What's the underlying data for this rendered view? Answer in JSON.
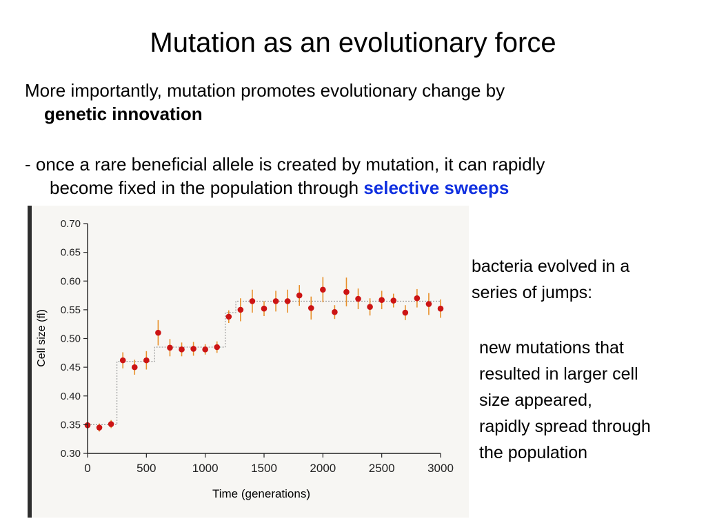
{
  "slide": {
    "title": "Mutation as an evolutionary force",
    "para1_text": "More importantly, mutation promotes evolutionary change by",
    "para1_bold": "genetic innovation",
    "para2_text": "- once a rare beneficial allele is created by mutation, it can rapidly",
    "para2_text2": "become fixed in the population through",
    "para2_highlight": "selective sweeps",
    "side_note1": [
      "bacteria evolved in a",
      "series of jumps:"
    ],
    "side_note2": [
      "new mutations that",
      "resulted in larger cell",
      "size appeared,",
      "rapidly spread through",
      "the population"
    ]
  },
  "colors": {
    "highlight": "#1030e0",
    "points": "#cc1414",
    "error_bars": "#e8902a",
    "step_line": "#8a8a8a"
  },
  "chart_data": {
    "type": "scatter",
    "xlabel": "Time (generations)",
    "ylabel": "Cell size (fl)",
    "xlim": [
      0,
      3000
    ],
    "ylim": [
      0.3,
      0.7
    ],
    "x_ticks": [
      0,
      500,
      1000,
      1500,
      2000,
      2500,
      3000
    ],
    "y_ticks": [
      0.3,
      0.35,
      0.4,
      0.45,
      0.5,
      0.55,
      0.6,
      0.65,
      0.7
    ],
    "y_tick_labels": [
      "0.30",
      "0.35",
      "0.40",
      "0.45",
      "0.50",
      "0.55",
      "0.60",
      "0.65",
      "0.70"
    ],
    "points": [
      {
        "x": 0,
        "y": 0.349,
        "err": 0.006
      },
      {
        "x": 100,
        "y": 0.345,
        "err": 0.007
      },
      {
        "x": 200,
        "y": 0.351,
        "err": 0.007
      },
      {
        "x": 300,
        "y": 0.462,
        "err": 0.014
      },
      {
        "x": 400,
        "y": 0.45,
        "err": 0.013
      },
      {
        "x": 500,
        "y": 0.462,
        "err": 0.016
      },
      {
        "x": 600,
        "y": 0.51,
        "err": 0.022
      },
      {
        "x": 700,
        "y": 0.484,
        "err": 0.015
      },
      {
        "x": 800,
        "y": 0.481,
        "err": 0.012
      },
      {
        "x": 900,
        "y": 0.482,
        "err": 0.012
      },
      {
        "x": 1000,
        "y": 0.481,
        "err": 0.009
      },
      {
        "x": 1100,
        "y": 0.485,
        "err": 0.01
      },
      {
        "x": 1200,
        "y": 0.538,
        "err": 0.011
      },
      {
        "x": 1300,
        "y": 0.55,
        "err": 0.02
      },
      {
        "x": 1400,
        "y": 0.565,
        "err": 0.02
      },
      {
        "x": 1500,
        "y": 0.552,
        "err": 0.013
      },
      {
        "x": 1600,
        "y": 0.565,
        "err": 0.018
      },
      {
        "x": 1700,
        "y": 0.565,
        "err": 0.02
      },
      {
        "x": 1800,
        "y": 0.575,
        "err": 0.018
      },
      {
        "x": 1900,
        "y": 0.553,
        "err": 0.02
      },
      {
        "x": 2000,
        "y": 0.585,
        "err": 0.022
      },
      {
        "x": 2100,
        "y": 0.546,
        "err": 0.012
      },
      {
        "x": 2200,
        "y": 0.581,
        "err": 0.025
      },
      {
        "x": 2300,
        "y": 0.569,
        "err": 0.018
      },
      {
        "x": 2400,
        "y": 0.555,
        "err": 0.015
      },
      {
        "x": 2500,
        "y": 0.567,
        "err": 0.016
      },
      {
        "x": 2600,
        "y": 0.566,
        "err": 0.012
      },
      {
        "x": 2700,
        "y": 0.545,
        "err": 0.013
      },
      {
        "x": 2800,
        "y": 0.57,
        "err": 0.016
      },
      {
        "x": 2900,
        "y": 0.56,
        "err": 0.019
      },
      {
        "x": 3000,
        "y": 0.552,
        "err": 0.016
      }
    ],
    "step_fit": [
      {
        "x0": 0,
        "x1": 250,
        "y": 0.35
      },
      {
        "x0": 250,
        "x1": 570,
        "y": 0.46
      },
      {
        "x0": 570,
        "x1": 1170,
        "y": 0.485
      },
      {
        "x0": 1170,
        "x1": 1260,
        "y": 0.545
      },
      {
        "x0": 1260,
        "x1": 3000,
        "y": 0.565
      }
    ],
    "grid": false,
    "legend": "none"
  }
}
